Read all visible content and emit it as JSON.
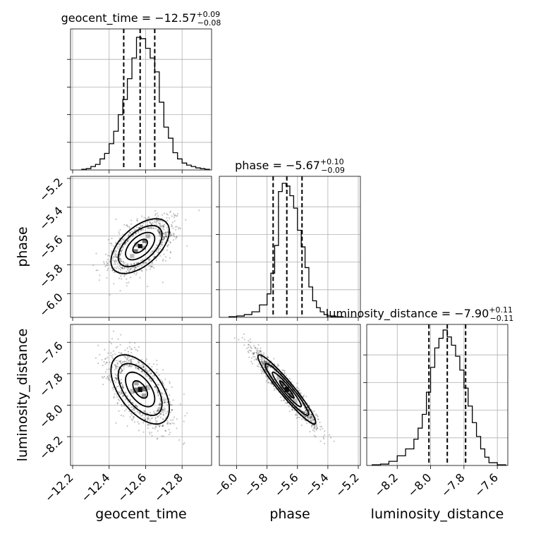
{
  "figure": {
    "type": "corner-plot",
    "parameters": [
      "geocent_time",
      "phase",
      "luminosity_distance"
    ],
    "colors": {
      "ink": "#000000",
      "grid": "#b0b0b0",
      "background": "#ffffff"
    }
  },
  "chart_data": [
    {
      "type": "histogram",
      "parameter": "geocent_time",
      "title": {
        "prefix": "geocent_time = ",
        "value": "−12.57",
        "upper": "+0.09",
        "lower": "−0.08"
      },
      "bin_edges": [
        -12.95,
        -12.925,
        -12.9,
        -12.875,
        -12.85,
        -12.825,
        -12.8,
        -12.775,
        -12.75,
        -12.725,
        -12.7,
        -12.675,
        -12.65,
        -12.625,
        -12.6,
        -12.575,
        -12.55,
        -12.525,
        -12.5,
        -12.475,
        -12.45,
        -12.425,
        -12.4,
        -12.375,
        -12.35,
        -12.325,
        -12.3,
        -12.275,
        -12.25
      ],
      "counts": [
        0.5,
        1,
        1.5,
        2.5,
        3.5,
        5,
        8,
        12.5,
        23,
        31,
        49,
        71,
        81,
        88,
        95,
        96,
        81,
        66,
        51,
        40,
        28,
        19,
        12,
        8,
        4,
        2.5,
        1,
        0.5
      ],
      "xlim": [
        -12.2,
        -12.95
      ],
      "count_lim": [
        0,
        100
      ],
      "quantiles": [
        -12.65,
        -12.57,
        -12.48
      ],
      "x_ticks": [
        -12.8,
        -12.6,
        -12.4,
        -12.2
      ],
      "grid": true
    },
    {
      "type": "histogram",
      "parameter": "phase",
      "title": {
        "prefix": "phase = ",
        "value": "−5.67",
        "upper": "+0.10",
        "lower": "−0.09"
      },
      "bin_edges": [
        -6.05,
        -6.0,
        -5.95,
        -5.9,
        -5.85,
        -5.8,
        -5.775,
        -5.75,
        -5.725,
        -5.7,
        -5.675,
        -5.65,
        -5.625,
        -5.6,
        -5.575,
        -5.55,
        -5.525,
        -5.5,
        -5.475,
        -5.45,
        -5.425,
        -5.4,
        -5.35,
        -5.3
      ],
      "counts": [
        0.5,
        1,
        2,
        4,
        9,
        17,
        32,
        52,
        91,
        97,
        95,
        88,
        79,
        63,
        51,
        36,
        22,
        12,
        7,
        4,
        2,
        1,
        0.5
      ],
      "xlim": [
        -6.1,
        -5.2
      ],
      "count_lim": [
        0,
        100
      ],
      "quantiles": [
        -5.76,
        -5.67,
        -5.57
      ],
      "x_ticks": [
        -6.0,
        -5.8,
        -5.6,
        -5.4,
        -5.2
      ],
      "grid": true
    },
    {
      "type": "histogram",
      "parameter": "luminosity_distance",
      "title": {
        "prefix": "luminosity_distance = ",
        "value": "−7.90",
        "upper": "+0.11",
        "lower": "−0.11"
      },
      "bin_edges": [
        -8.35,
        -8.3,
        -8.25,
        -8.2,
        -8.15,
        -8.1,
        -8.075,
        -8.05,
        -8.025,
        -8.0,
        -7.975,
        -7.95,
        -7.925,
        -7.9,
        -7.875,
        -7.85,
        -7.825,
        -7.8,
        -7.775,
        -7.75,
        -7.725,
        -7.7,
        -7.675,
        -7.65,
        -7.6,
        -7.55
      ],
      "counts": [
        0.5,
        1,
        3,
        7,
        12,
        19,
        27,
        37,
        53,
        71,
        85,
        92,
        98,
        93,
        87,
        79,
        69,
        56,
        43,
        31,
        21,
        12,
        6,
        2,
        0.5
      ],
      "xlim": [
        -8.37,
        -7.55
      ],
      "count_lim": [
        0,
        100
      ],
      "quantiles": [
        -8.01,
        -7.9,
        -7.79
      ],
      "x_ticks": [
        -8.2,
        -8.0,
        -7.8,
        -7.6
      ],
      "grid": true
    },
    {
      "type": "scatter-contour",
      "x_parameter": "geocent_time",
      "y_parameter": "phase",
      "xlim": [
        -12.2,
        -12.95
      ],
      "ylim": [
        -6.15,
        -5.2
      ],
      "y_ticks": [
        -6.0,
        -5.8,
        -5.6,
        -5.4,
        -5.2
      ],
      "center": [
        -12.57,
        -5.67
      ],
      "sigma": [
        0.08,
        0.095
      ],
      "correlation": -0.55,
      "contour_levels_sigma": [
        0.5,
        1.0,
        1.5,
        2.0
      ],
      "grid": true
    },
    {
      "type": "scatter-contour",
      "x_parameter": "geocent_time",
      "y_parameter": "luminosity_distance",
      "xlim": [
        -12.2,
        -12.95
      ],
      "ylim": [
        -8.37,
        -7.5
      ],
      "y_ticks": [
        -8.2,
        -8.0,
        -7.8,
        -7.6
      ],
      "center": [
        -12.57,
        -7.9
      ],
      "sigma": [
        0.08,
        0.11
      ],
      "correlation": 0.55,
      "contour_levels_sigma": [
        0.5,
        1.0,
        1.5,
        2.0
      ],
      "grid": true
    },
    {
      "type": "scatter-contour",
      "x_parameter": "phase",
      "y_parameter": "luminosity_distance",
      "xlim": [
        -6.1,
        -5.2
      ],
      "ylim": [
        -8.37,
        -7.5
      ],
      "center": [
        -5.67,
        -7.9
      ],
      "sigma": [
        0.095,
        0.11
      ],
      "correlation": -0.95,
      "contour_levels_sigma": [
        0.5,
        1.0,
        1.5,
        2.0
      ],
      "grid": true
    }
  ]
}
